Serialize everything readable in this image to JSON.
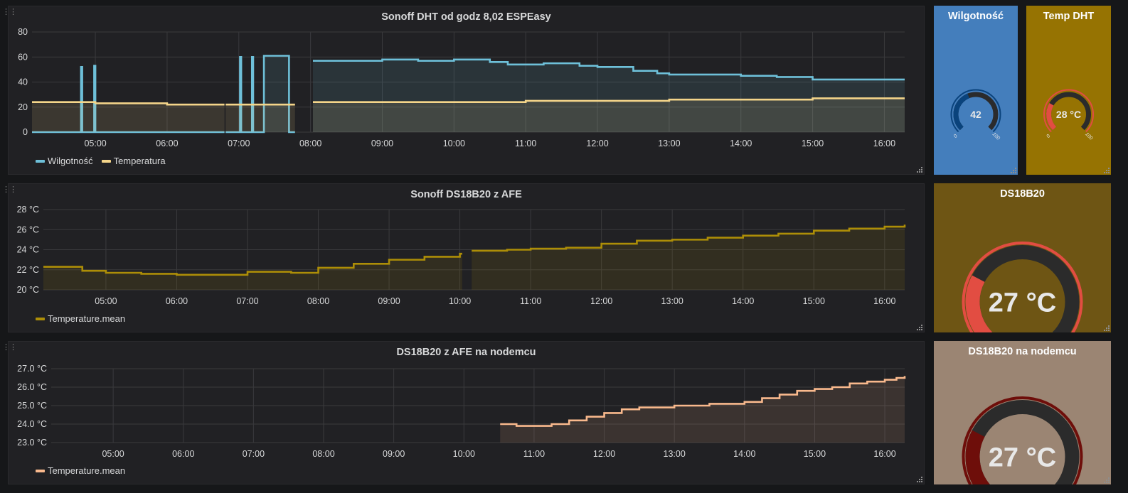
{
  "panels": {
    "dht": {
      "title": "Sonoff DHT od godz 8,02 ESPEasy",
      "legend": [
        {
          "label": "Wilgotność",
          "color": "#6ec0d9"
        },
        {
          "label": "Temperatura",
          "color": "#f4d58a"
        }
      ]
    },
    "ds18b20_afe": {
      "title": "Sonoff DS18B20 z AFE",
      "legend": [
        {
          "label": "Temperature.mean",
          "color": "#ad8e07"
        }
      ]
    },
    "ds18b20_nodemcu": {
      "title": "DS18B20 z AFE na nodemcu",
      "legend": [
        {
          "label": "Temperature.mean",
          "color": "#f9b98d"
        }
      ]
    }
  },
  "gauges": {
    "humidity": {
      "title": "Wilgotność",
      "value": 42,
      "display": "42",
      "min": 0,
      "max": 100,
      "bg": "#447ebc",
      "fill": "#0a437c",
      "threshold_color": "#0a437c"
    },
    "temp_dht": {
      "title": "Temp DHT",
      "value": 28,
      "display": "28 °C",
      "min": 0,
      "max": 100,
      "bg": "#967302",
      "fill": "#e24d42",
      "threshold_color": "#e24d42"
    },
    "ds18b20": {
      "title": "DS18B20",
      "value": 27,
      "display": "27 °C",
      "min": 0,
      "max": 100,
      "bg": "#6e5514",
      "fill": "#e24d42",
      "threshold_color": "#e24d42"
    },
    "ds18b20_nodemcu": {
      "title": "DS18B20 na nodemcu",
      "value": 27,
      "display": "27 °C",
      "min": 0,
      "max": 100,
      "bg": "#9b8573",
      "fill": "#6e0e0a",
      "threshold_color": "#6e0e0a"
    }
  },
  "chart_data": [
    {
      "type": "line",
      "title": "Sonoff DHT od godz 8,02 ESPEasy",
      "x_ticks": [
        "05:00",
        "06:00",
        "07:00",
        "08:00",
        "09:00",
        "10:00",
        "11:00",
        "12:00",
        "13:00",
        "14:00",
        "15:00",
        "16:00"
      ],
      "y_ticks": [
        "0",
        "20",
        "40",
        "60",
        "80"
      ],
      "ylim": [
        0,
        80
      ],
      "xlim": [
        "04:07",
        "16:17"
      ],
      "series": [
        {
          "name": "Wilgotność",
          "color": "#6ec0d9",
          "points": [
            [
              "04:07",
              0
            ],
            [
              "04:47",
              0
            ],
            [
              "04:48",
              52
            ],
            [
              "04:49",
              0
            ],
            [
              "04:58",
              0
            ],
            [
              "04:59",
              53
            ],
            [
              "05:00",
              0
            ],
            [
              "06:48",
              0
            ],
            [
              "06:48",
              null
            ],
            [
              "06:49",
              0
            ],
            [
              "07:00",
              0
            ],
            [
              "07:01",
              60
            ],
            [
              "07:02",
              0
            ],
            [
              "07:10",
              0
            ],
            [
              "07:11",
              60
            ],
            [
              "07:12",
              0
            ],
            [
              "07:20",
              0
            ],
            [
              "07:21",
              61
            ],
            [
              "07:41",
              61
            ],
            [
              "07:42",
              0
            ],
            [
              "07:47",
              0
            ],
            [
              "07:47",
              null
            ],
            [
              "08:02",
              57
            ],
            [
              "08:30",
              57
            ],
            [
              "09:00",
              58
            ],
            [
              "09:30",
              57
            ],
            [
              "10:00",
              58
            ],
            [
              "10:30",
              56
            ],
            [
              "10:45",
              54
            ],
            [
              "11:00",
              54
            ],
            [
              "11:15",
              55
            ],
            [
              "11:30",
              55
            ],
            [
              "11:45",
              53
            ],
            [
              "12:00",
              52
            ],
            [
              "12:30",
              49
            ],
            [
              "12:50",
              47
            ],
            [
              "13:00",
              46
            ],
            [
              "13:30",
              46
            ],
            [
              "14:00",
              45
            ],
            [
              "14:30",
              44
            ],
            [
              "15:00",
              42
            ],
            [
              "15:30",
              42
            ],
            [
              "16:00",
              42
            ],
            [
              "16:17",
              42
            ]
          ]
        },
        {
          "name": "Temperatura",
          "color": "#f4d58a",
          "points": [
            [
              "04:07",
              24
            ],
            [
              "05:00",
              23
            ],
            [
              "06:00",
              22
            ],
            [
              "06:48",
              22
            ],
            [
              "06:48",
              null
            ],
            [
              "06:49",
              22
            ],
            [
              "07:47",
              22
            ],
            [
              "07:47",
              null
            ],
            [
              "08:02",
              24
            ],
            [
              "09:00",
              24
            ],
            [
              "10:00",
              24
            ],
            [
              "11:00",
              25
            ],
            [
              "12:00",
              25
            ],
            [
              "13:00",
              26
            ],
            [
              "14:00",
              26
            ],
            [
              "15:00",
              27
            ],
            [
              "16:00",
              27
            ],
            [
              "16:17",
              27
            ]
          ]
        }
      ]
    },
    {
      "type": "line",
      "title": "Sonoff DS18B20 z AFE",
      "x_ticks": [
        "05:00",
        "06:00",
        "07:00",
        "08:00",
        "09:00",
        "10:00",
        "11:00",
        "12:00",
        "13:00",
        "14:00",
        "15:00",
        "16:00"
      ],
      "y_ticks": [
        "20 °C",
        "22 °C",
        "24 °C",
        "26 °C",
        "28 °C"
      ],
      "ylim": [
        20,
        28
      ],
      "xlim": [
        "04:07",
        "16:17"
      ],
      "series": [
        {
          "name": "Temperature.mean",
          "color": "#ad8e07",
          "points": [
            [
              "04:07",
              22.3
            ],
            [
              "04:20",
              22.3
            ],
            [
              "04:40",
              21.9
            ],
            [
              "05:00",
              21.7
            ],
            [
              "05:30",
              21.6
            ],
            [
              "06:00",
              21.5
            ],
            [
              "06:30",
              21.5
            ],
            [
              "07:00",
              21.8
            ],
            [
              "07:30",
              21.8
            ],
            [
              "07:37",
              21.7
            ],
            [
              "08:00",
              22.2
            ],
            [
              "08:30",
              22.6
            ],
            [
              "09:00",
              23.0
            ],
            [
              "09:30",
              23.3
            ],
            [
              "10:00",
              23.6
            ],
            [
              "10:02",
              23.6
            ],
            [
              "10:02",
              null
            ],
            [
              "10:10",
              23.9
            ],
            [
              "10:30",
              23.9
            ],
            [
              "10:40",
              24.0
            ],
            [
              "11:00",
              24.1
            ],
            [
              "11:30",
              24.2
            ],
            [
              "12:00",
              24.6
            ],
            [
              "12:30",
              24.9
            ],
            [
              "13:00",
              25.0
            ],
            [
              "13:30",
              25.2
            ],
            [
              "14:00",
              25.4
            ],
            [
              "14:30",
              25.6
            ],
            [
              "15:00",
              25.9
            ],
            [
              "15:30",
              26.1
            ],
            [
              "16:00",
              26.3
            ],
            [
              "16:17",
              26.5
            ]
          ]
        }
      ]
    },
    {
      "type": "line",
      "title": "DS18B20 z AFE na nodemcu",
      "x_ticks": [
        "05:00",
        "06:00",
        "07:00",
        "08:00",
        "09:00",
        "10:00",
        "11:00",
        "12:00",
        "13:00",
        "14:00",
        "15:00",
        "16:00"
      ],
      "y_ticks": [
        "23.0 °C",
        "24.0 °C",
        "25.0 °C",
        "26.0 °C",
        "27.0 °C"
      ],
      "ylim": [
        23,
        27
      ],
      "xlim": [
        "04:07",
        "16:17"
      ],
      "series": [
        {
          "name": "Temperature.mean",
          "color": "#f9b98d",
          "points": [
            [
              "10:31",
              24.0
            ],
            [
              "10:45",
              23.9
            ],
            [
              "11:00",
              23.9
            ],
            [
              "11:15",
              24.0
            ],
            [
              "11:30",
              24.2
            ],
            [
              "11:45",
              24.4
            ],
            [
              "12:00",
              24.6
            ],
            [
              "12:15",
              24.8
            ],
            [
              "12:30",
              24.9
            ],
            [
              "12:45",
              24.9
            ],
            [
              "13:00",
              25.0
            ],
            [
              "13:30",
              25.1
            ],
            [
              "14:00",
              25.2
            ],
            [
              "14:15",
              25.4
            ],
            [
              "14:30",
              25.6
            ],
            [
              "14:45",
              25.8
            ],
            [
              "15:00",
              25.9
            ],
            [
              "15:15",
              26.0
            ],
            [
              "15:30",
              26.2
            ],
            [
              "15:45",
              26.3
            ],
            [
              "16:00",
              26.4
            ],
            [
              "16:10",
              26.5
            ],
            [
              "16:17",
              26.6
            ]
          ]
        }
      ]
    }
  ]
}
